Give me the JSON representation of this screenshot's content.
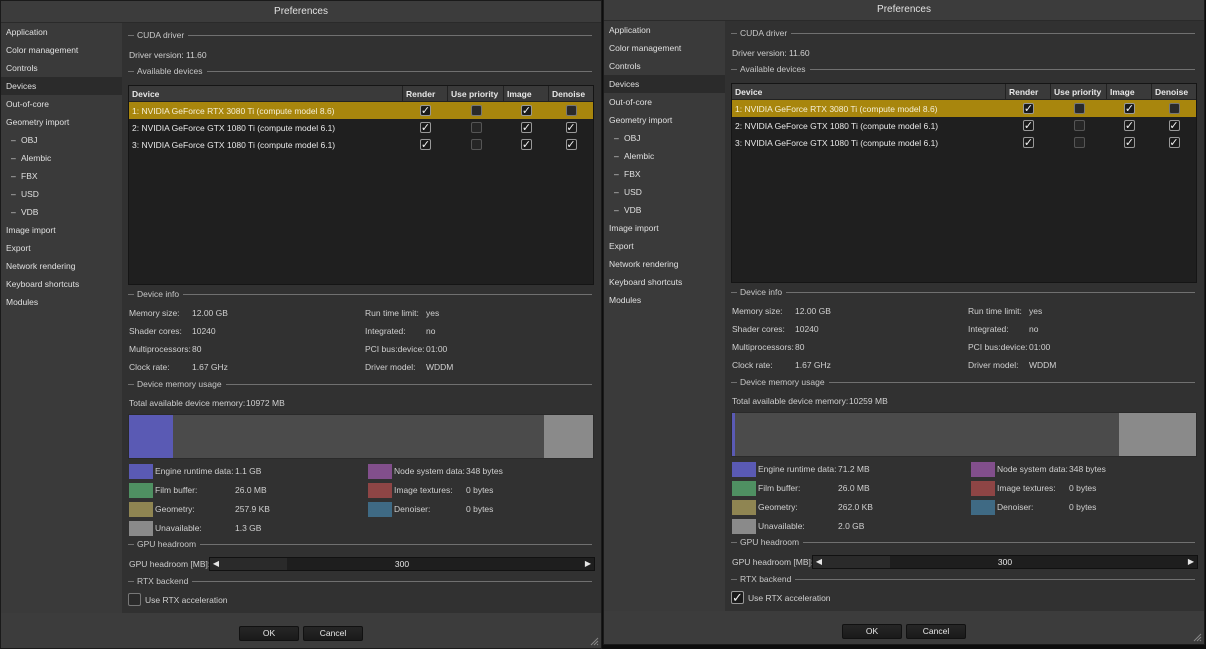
{
  "windows": [
    {
      "title": "Preferences",
      "sidebar": [
        {
          "label": "Application",
          "sub": false,
          "active": false
        },
        {
          "label": "Color management",
          "sub": false,
          "active": false
        },
        {
          "label": "Controls",
          "sub": false,
          "active": false
        },
        {
          "label": "Devices",
          "sub": false,
          "active": true
        },
        {
          "label": "Out-of-core",
          "sub": false,
          "active": false
        },
        {
          "label": "Geometry import",
          "sub": false,
          "active": false
        },
        {
          "label": "OBJ",
          "sub": true,
          "active": false
        },
        {
          "label": "Alembic",
          "sub": true,
          "active": false
        },
        {
          "label": "FBX",
          "sub": true,
          "active": false
        },
        {
          "label": "USD",
          "sub": true,
          "active": false
        },
        {
          "label": "VDB",
          "sub": true,
          "active": false
        },
        {
          "label": "Image import",
          "sub": false,
          "active": false
        },
        {
          "label": "Export",
          "sub": false,
          "active": false
        },
        {
          "label": "Network rendering",
          "sub": false,
          "active": false
        },
        {
          "label": "Keyboard shortcuts",
          "sub": false,
          "active": false
        },
        {
          "label": "Modules",
          "sub": false,
          "active": false
        }
      ],
      "sections": {
        "cuda_driver": "CUDA driver",
        "available_devices": "Available devices",
        "device_info": "Device info",
        "device_memory_usage": "Device memory usage",
        "gpu_headroom": "GPU headroom",
        "rtx_backend": "RTX backend"
      },
      "driver_version_label": "Driver version:",
      "driver_version": "11.60",
      "table_headers": {
        "device": "Device",
        "render": "Render",
        "priority": "Use priority",
        "image": "Image",
        "denoise": "Denoise"
      },
      "devices": [
        {
          "name": "1: NVIDIA GeForce RTX 3080 Ti (compute model 8.6)",
          "render": true,
          "priority": false,
          "image": true,
          "denoise": false,
          "selected": true
        },
        {
          "name": "2: NVIDIA GeForce GTX 1080 Ti (compute model 6.1)",
          "render": true,
          "priority": false,
          "image": true,
          "denoise": true,
          "selected": false
        },
        {
          "name": "3: NVIDIA GeForce GTX 1080 Ti (compute model 6.1)",
          "render": true,
          "priority": false,
          "image": true,
          "denoise": true,
          "selected": false
        }
      ],
      "info": {
        "memory_size_label": "Memory size:",
        "memory_size": "12.00 GB",
        "shader_cores_label": "Shader cores:",
        "shader_cores": "10240",
        "multiprocessors_label": "Multiprocessors:",
        "multiprocessors": "80",
        "clock_rate_label": "Clock rate:",
        "clock_rate": "1.67 GHz",
        "run_time_limit_label": "Run time limit:",
        "run_time_limit": "yes",
        "integrated_label": "Integrated:",
        "integrated": "no",
        "pci_label": "PCI bus:device:",
        "pci": "01:00",
        "driver_model_label": "Driver model:",
        "driver_model": "WDDM"
      },
      "memory": {
        "total_label": "Total available device memory:",
        "total": "10972 MB",
        "bar_engine_fraction": 0.095,
        "bar_unavailable_fraction": 0.106,
        "engine_label": "Engine runtime data:",
        "engine": "1.1 GB",
        "film_label": "Film buffer:",
        "film": "26.0 MB",
        "geometry_label": "Geometry:",
        "geometry": "257.9 KB",
        "unavailable_label": "Unavailable:",
        "unavailable": "1.3 GB",
        "node_label": "Node system data:",
        "node": "348 bytes",
        "textures_label": "Image textures:",
        "textures": "0 bytes",
        "denoiser_label": "Denoiser:",
        "denoiser": "0 bytes"
      },
      "headroom_label": "GPU headroom [MB]:",
      "headroom_value": "300",
      "headroom_fraction": 0.2,
      "rtx_label": "Use RTX acceleration",
      "rtx_enabled": false,
      "ok_label": "OK",
      "cancel_label": "Cancel"
    },
    {
      "title": "Preferences",
      "sidebar": [
        {
          "label": "Application",
          "sub": false,
          "active": false
        },
        {
          "label": "Color management",
          "sub": false,
          "active": false
        },
        {
          "label": "Controls",
          "sub": false,
          "active": false
        },
        {
          "label": "Devices",
          "sub": false,
          "active": true
        },
        {
          "label": "Out-of-core",
          "sub": false,
          "active": false
        },
        {
          "label": "Geometry import",
          "sub": false,
          "active": false
        },
        {
          "label": "OBJ",
          "sub": true,
          "active": false
        },
        {
          "label": "Alembic",
          "sub": true,
          "active": false
        },
        {
          "label": "FBX",
          "sub": true,
          "active": false
        },
        {
          "label": "USD",
          "sub": true,
          "active": false
        },
        {
          "label": "VDB",
          "sub": true,
          "active": false
        },
        {
          "label": "Image import",
          "sub": false,
          "active": false
        },
        {
          "label": "Export",
          "sub": false,
          "active": false
        },
        {
          "label": "Network rendering",
          "sub": false,
          "active": false
        },
        {
          "label": "Keyboard shortcuts",
          "sub": false,
          "active": false
        },
        {
          "label": "Modules",
          "sub": false,
          "active": false
        }
      ],
      "sections": {
        "cuda_driver": "CUDA driver",
        "available_devices": "Available devices",
        "device_info": "Device info",
        "device_memory_usage": "Device memory usage",
        "gpu_headroom": "GPU headroom",
        "rtx_backend": "RTX backend"
      },
      "driver_version_label": "Driver version:",
      "driver_version": "11.60",
      "table_headers": {
        "device": "Device",
        "render": "Render",
        "priority": "Use priority",
        "image": "Image",
        "denoise": "Denoise"
      },
      "devices": [
        {
          "name": "1: NVIDIA GeForce RTX 3080 Ti (compute model 8.6)",
          "render": true,
          "priority": false,
          "image": true,
          "denoise": false,
          "selected": true
        },
        {
          "name": "2: NVIDIA GeForce GTX 1080 Ti (compute model 6.1)",
          "render": true,
          "priority": false,
          "image": true,
          "denoise": true,
          "selected": false
        },
        {
          "name": "3: NVIDIA GeForce GTX 1080 Ti (compute model 6.1)",
          "render": true,
          "priority": false,
          "image": true,
          "denoise": true,
          "selected": false
        }
      ],
      "info": {
        "memory_size_label": "Memory size:",
        "memory_size": "12.00 GB",
        "shader_cores_label": "Shader cores:",
        "shader_cores": "10240",
        "multiprocessors_label": "Multiprocessors:",
        "multiprocessors": "80",
        "clock_rate_label": "Clock rate:",
        "clock_rate": "1.67 GHz",
        "run_time_limit_label": "Run time limit:",
        "run_time_limit": "yes",
        "integrated_label": "Integrated:",
        "integrated": "no",
        "pci_label": "PCI bus:device:",
        "pci": "01:00",
        "driver_model_label": "Driver model:",
        "driver_model": "WDDM"
      },
      "memory": {
        "total_label": "Total available device memory:",
        "total": "10259 MB",
        "bar_engine_fraction": 0.006,
        "bar_unavailable_fraction": 0.165,
        "engine_label": "Engine runtime data:",
        "engine": "71.2 MB",
        "film_label": "Film buffer:",
        "film": "26.0 MB",
        "geometry_label": "Geometry:",
        "geometry": "262.0 KB",
        "unavailable_label": "Unavailable:",
        "unavailable": "2.0 GB",
        "node_label": "Node system data:",
        "node": "348 bytes",
        "textures_label": "Image textures:",
        "textures": "0 bytes",
        "denoiser_label": "Denoiser:",
        "denoiser": "0 bytes"
      },
      "headroom_label": "GPU headroom [MB]:",
      "headroom_value": "300",
      "headroom_fraction": 0.2,
      "rtx_label": "Use RTX acceleration",
      "rtx_enabled": true,
      "ok_label": "OK",
      "cancel_label": "Cancel"
    }
  ],
  "colors": {
    "engine": "#5a5ab4",
    "film": "#4f9062",
    "geometry": "#8f8552",
    "unavailable": "#8a8a8a",
    "node": "#824f8c",
    "textures": "#8e4545",
    "denoiser": "#3f6a84",
    "selected_row": "#a8860d"
  },
  "icons": {
    "check": "checkmark-icon",
    "left": "arrow-left-icon",
    "right": "arrow-right-icon",
    "grip": "resize-grip-icon"
  }
}
